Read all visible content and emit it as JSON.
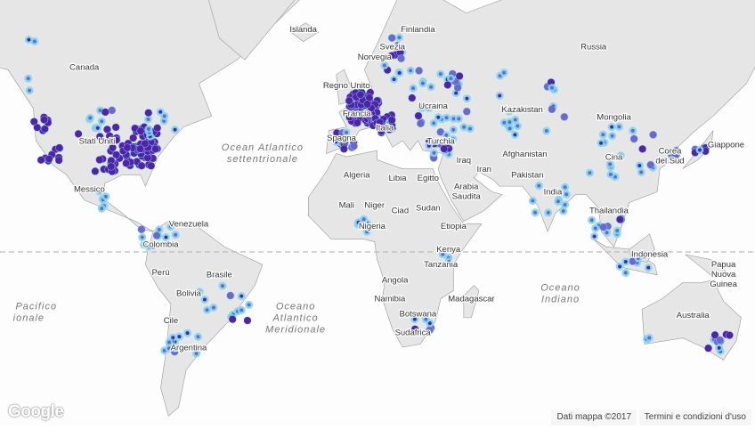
{
  "map": {
    "type": "heatmap",
    "colors": {
      "land": "#e6e6e6",
      "land_light": "#f2f2f2",
      "border": "#9a9a9a",
      "water": "#ffffff",
      "heat_low": "#7fd6ee",
      "heat_mid": "#6a5acd",
      "heat_high": "#4b0fa0",
      "equator": "#bbbbbb"
    },
    "countries": [
      "Islanda",
      "Finlandia",
      "Svezia",
      "Norvegia",
      "Russia",
      "Regno Unito",
      "Francia",
      "Spagna",
      "Italia",
      "Ucraina",
      "Kazakistan",
      "Mongolia",
      "Cina",
      "Corea del Sud",
      "Giappone",
      "Turchia",
      "Iraq",
      "Iran",
      "Afghanistan",
      "Pakistan",
      "India",
      "Thailandia",
      "Indonesia",
      "Papua Nuova Guinea",
      "Australia",
      "Arabia Saudita",
      "Egitto",
      "Libia",
      "Algeria",
      "Mali",
      "Niger",
      "Ciad",
      "Sudan",
      "Nigeria",
      "Etiopia",
      "Kenya",
      "Tanzania",
      "Angola",
      "Namibia",
      "Botswana",
      "Madagascar",
      "Sudafrica",
      "Canada",
      "Stati Uniti",
      "Messico",
      "Venezuela",
      "Colombia",
      "Perù",
      "Brasile",
      "Bolivia",
      "Cile",
      "Argentina"
    ],
    "oceans": [
      [
        "Ocean Atlantico",
        "settentrionale"
      ],
      [
        "Oceano",
        "Atlantico",
        "Meridionale"
      ],
      [
        "Oceano",
        "Indiano"
      ],
      [
        "Pacifico",
        "ionale"
      ]
    ]
  },
  "footer": {
    "logo": "Google",
    "map_data": "Dati mappa ©2017",
    "terms": "Termini e condizioni d'uso"
  }
}
